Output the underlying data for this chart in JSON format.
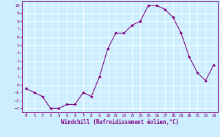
{
  "x": [
    0,
    1,
    2,
    3,
    4,
    5,
    6,
    7,
    8,
    9,
    10,
    11,
    12,
    13,
    14,
    15,
    16,
    17,
    18,
    19,
    20,
    21,
    22,
    23
  ],
  "y": [
    -0.5,
    -1.0,
    -1.5,
    -3.0,
    -3.0,
    -2.5,
    -2.5,
    -1.0,
    -1.5,
    1.0,
    4.5,
    6.5,
    6.5,
    7.5,
    8.0,
    10.0,
    10.0,
    9.5,
    8.5,
    6.5,
    3.5,
    1.5,
    0.5,
    2.5
  ],
  "line_color": "#800080",
  "marker": "D",
  "marker_size": 1.8,
  "bg_color": "#cceeff",
  "grid_color": "#ffffff",
  "xlabel": "Windchill (Refroidissement éolien,°C)",
  "xlabel_color": "#800080",
  "tick_color": "#800080",
  "ylim": [
    -3.5,
    10.5
  ],
  "xlim": [
    -0.5,
    23.5
  ],
  "yticks": [
    -3,
    -2,
    -1,
    0,
    1,
    2,
    3,
    4,
    5,
    6,
    7,
    8,
    9,
    10
  ],
  "xticks": [
    0,
    1,
    2,
    3,
    4,
    5,
    6,
    7,
    8,
    9,
    10,
    11,
    12,
    13,
    14,
    15,
    16,
    17,
    18,
    19,
    20,
    21,
    22,
    23
  ]
}
